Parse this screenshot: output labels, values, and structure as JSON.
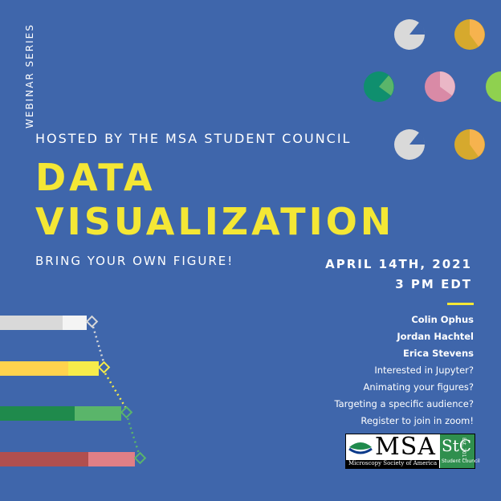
{
  "series_label": "WEBINAR SERIES",
  "hosted_by": "HOSTED BY THE MSA STUDENT COUNCIL",
  "title_line1": "DATA",
  "title_line2": "VISUALIZATION",
  "tagline": "BRING YOUR OWN FIGURE!",
  "date": "APRIL 14TH, 2021",
  "time": "3 PM EDT",
  "speakers": [
    "Colin Ophus",
    "Jordan Hachtel",
    "Erica Stevens"
  ],
  "topics": [
    "Interested in Jupyter?",
    "Animating your figures?",
    "Targeting a specific audience?",
    "Register to join in zoom!"
  ],
  "logo": {
    "msa": "MSA",
    "msa_sub": "Microscopy Society of America",
    "stc": "StC",
    "stc_sub": "Student Council",
    "stc_est": "Est. 2017"
  },
  "colors": {
    "background": "#3f66ab",
    "title": "#f4e735",
    "text": "#ffffff",
    "gray": "#d9d9d9",
    "yellow": "#ffd34d",
    "green": "#1f8a4c",
    "red": "#b04f4f",
    "pink": "#d98aa6",
    "lime": "#8fd14f",
    "teal": "#0f8f6e",
    "gold": "#d6a92d"
  }
}
